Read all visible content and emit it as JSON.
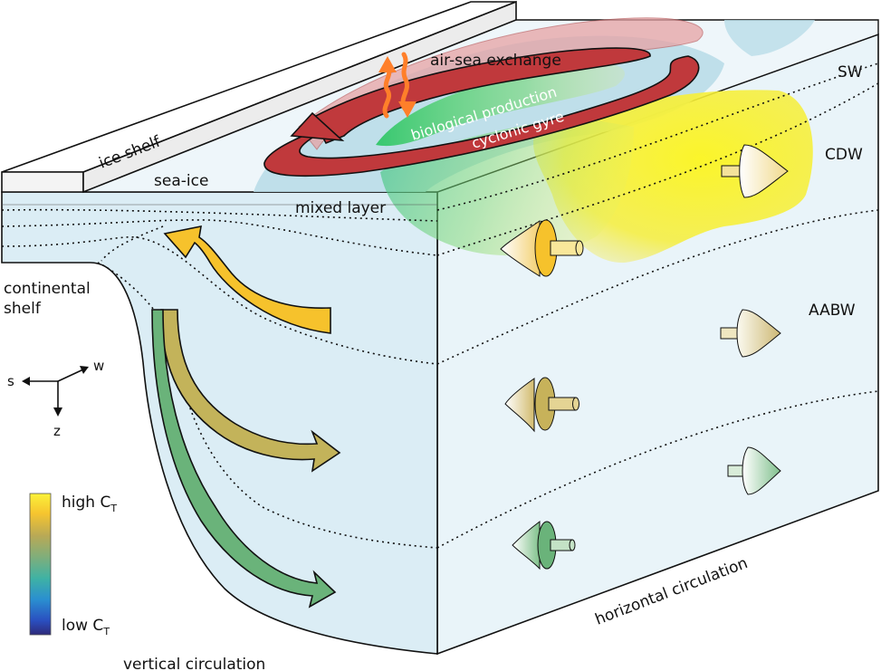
{
  "labels": {
    "ice_shelf": "ice shelf",
    "sea_ice": "sea-ice",
    "air_sea_exchange": "air-sea exchange",
    "biological_production": "biological production",
    "cyclonic_gyre": "cyclonic gyre",
    "mixed_layer": "mixed layer",
    "sw": "SW",
    "cdw": "CDW",
    "aabw": "AABW",
    "continental_shelf_line1": "continental",
    "continental_shelf_line2": "shelf",
    "vertical_circulation": "vertical circulation",
    "horizontal_circulation": "horizontal circulation"
  },
  "axes": {
    "s": "s",
    "w": "w",
    "z": "z"
  },
  "colorbar": {
    "high_label": "high C",
    "high_sub": "T",
    "low_label": "low C",
    "low_sub": "T",
    "stops": [
      "#fbf23a",
      "#f6c52f",
      "#b8a956",
      "#7fae7b",
      "#3fb2a4",
      "#2a8fd0",
      "#2a4fc0",
      "#2e2a7a"
    ]
  },
  "colors": {
    "ocean_front": "#dceef6",
    "ocean_side": "#e8f4f9",
    "surface": "#eef6fa",
    "sea_ice": "#b9dde8",
    "gyre": "#c0393c",
    "bio": "#22c75c",
    "cdw_yellow": "#f7ef2e",
    "warm_arrow": "#f6c22c",
    "mid_arrow": "#c3b35a",
    "cold_arrow": "#6ab37a",
    "exchange": "#ff7f2a"
  }
}
